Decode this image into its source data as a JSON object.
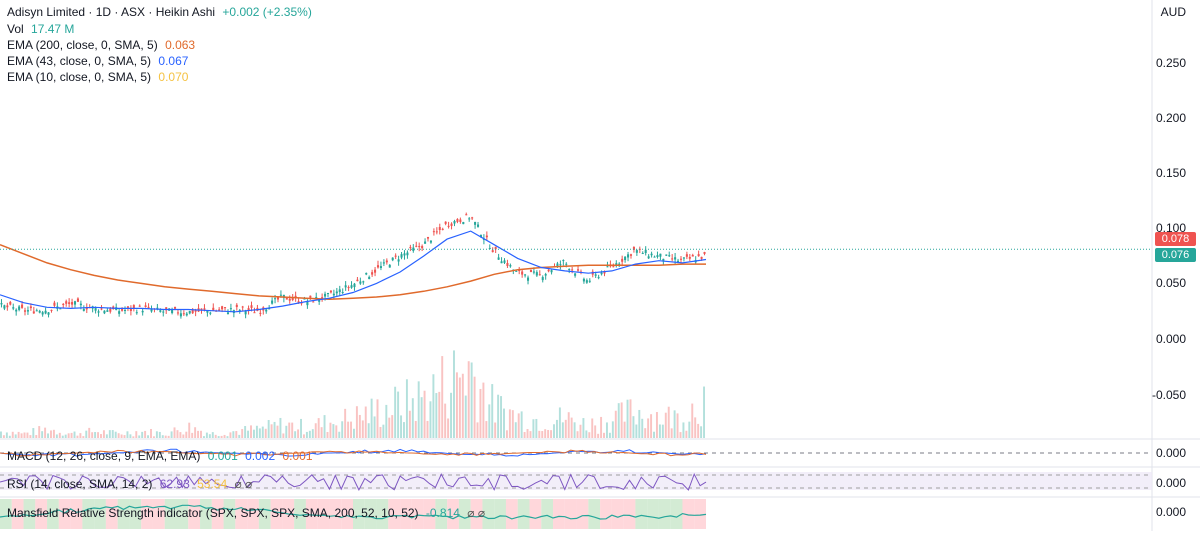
{
  "header": {
    "title": "Adisyn Limited · 1D · ASX · Heikin Ashi",
    "change": "+0.002 (+2.35%)",
    "currency": "AUD"
  },
  "legend": {
    "vol_label": "Vol",
    "vol_value": "17.47 M",
    "ema200_label": "EMA (200, close, 0, SMA, 5)",
    "ema200_value": "0.063",
    "ema43_label": "EMA (43, close, 0, SMA, 5)",
    "ema43_value": "0.067",
    "ema10_label": "EMA (10, close, 0, SMA, 5)",
    "ema10_value": "0.070"
  },
  "price_tags": {
    "last": "0.078",
    "prev": "0.076"
  },
  "panes": {
    "macd": {
      "label": "MACD (12, 26, close, 9, EMA, EMA)",
      "v1": "0.001",
      "v2": "0.002",
      "v3": "0.001",
      "axis": "0.000"
    },
    "rsi": {
      "label": "RSI (14, close, SMA, 14, 2)",
      "v1": "62.93",
      "v2": "53.54",
      "axis": "0.000"
    },
    "mansfield": {
      "label": "Mansfield Relative Strength indicator (SPX, SPX, SPX, SMA, 200, 52, 10, 52)",
      "v1": "-0.814",
      "axis": "0.000"
    }
  },
  "colors": {
    "up": "#26a69a",
    "down": "#ef5350",
    "ema200": "#e06a2c",
    "ema43": "#2962ff",
    "ema10": "#f5c242",
    "macd": "#2962ff",
    "signal": "#e06a2c",
    "rsi": "#7e57c2"
  },
  "chart_data": {
    "type": "line",
    "chart_style": "heikin-ashi candlestick with volume",
    "y_ticks": [
      "0.250",
      "0.200",
      "0.150",
      "0.100",
      "0.050",
      "0.000",
      "-0.050"
    ],
    "ylim": [
      -0.09,
      0.29
    ],
    "grid": false,
    "series": [
      {
        "name": "EMA (200, close, 0, SMA, 5)",
        "color": "#e06a2c",
        "values": [
          0.08,
          0.072,
          0.064,
          0.058,
          0.053,
          0.049,
          0.046,
          0.043,
          0.041,
          0.039,
          0.037,
          0.035,
          0.034,
          0.033,
          0.032,
          0.033,
          0.034,
          0.036,
          0.039,
          0.043,
          0.048,
          0.054,
          0.058,
          0.06,
          0.061,
          0.062,
          0.062,
          0.062,
          0.062,
          0.063,
          0.063
        ]
      },
      {
        "name": "EMA (43, close, 0, SMA, 5)",
        "color": "#2962ff",
        "values": [
          0.036,
          0.029,
          0.025,
          0.024,
          0.025,
          0.024,
          0.024,
          0.023,
          0.023,
          0.022,
          0.021,
          0.023,
          0.026,
          0.03,
          0.033,
          0.038,
          0.046,
          0.056,
          0.07,
          0.085,
          0.092,
          0.08,
          0.068,
          0.06,
          0.057,
          0.055,
          0.057,
          0.063,
          0.066,
          0.064,
          0.067
        ]
      },
      {
        "name": "EMA (10, close, 0, SMA, 5)",
        "color": "#f5c242",
        "values": [
          0.026,
          0.022,
          0.023,
          0.028,
          0.024,
          0.022,
          0.024,
          0.021,
          0.021,
          0.022,
          0.023,
          0.022,
          0.034,
          0.03,
          0.035,
          0.045,
          0.058,
          0.07,
          0.08,
          0.098,
          0.105,
          0.075,
          0.055,
          0.053,
          0.065,
          0.048,
          0.06,
          0.075,
          0.07,
          0.066,
          0.07
        ]
      }
    ],
    "volume_profile": [
      3,
      2,
      4,
      2,
      3,
      2,
      3,
      2,
      5,
      2,
      3,
      4,
      6,
      5,
      7,
      9,
      12,
      15,
      18,
      25,
      32,
      14,
      10,
      8,
      9,
      6,
      8,
      12,
      10,
      9,
      18
    ]
  }
}
